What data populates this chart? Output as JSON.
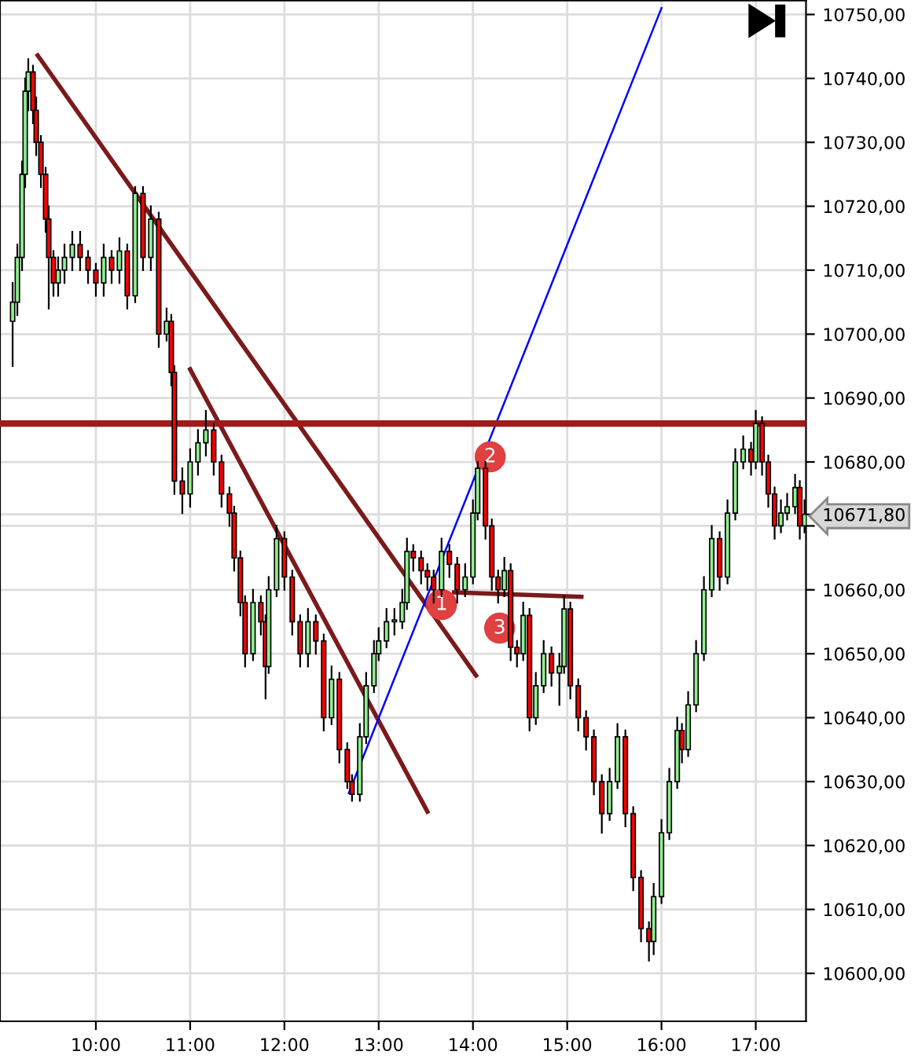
{
  "chart_data": {
    "type": "candlestick",
    "x": [
      9.117,
      9.167,
      9.217,
      9.25,
      9.283,
      9.333,
      9.367,
      9.417,
      9.467,
      9.5,
      9.55,
      9.6,
      9.667,
      9.75,
      9.833,
      9.917,
      10.0,
      10.083,
      10.167,
      10.25,
      10.333,
      10.417,
      10.5,
      10.583,
      10.667,
      10.75,
      10.8,
      10.833,
      10.917,
      11.0,
      11.083,
      11.167,
      11.25,
      11.333,
      11.417,
      11.467,
      11.533,
      11.583,
      11.667,
      11.75,
      11.8,
      11.833,
      11.917,
      12.0,
      12.083,
      12.167,
      12.25,
      12.333,
      12.417,
      12.5,
      12.583,
      12.667,
      12.717,
      12.8,
      12.867,
      12.95,
      13.0,
      13.083,
      13.167,
      13.25,
      13.3,
      13.367,
      13.45,
      13.517,
      13.583,
      13.667,
      13.75,
      13.833,
      13.917,
      14.0,
      14.05,
      14.133,
      14.2,
      14.267,
      14.333,
      14.4,
      14.467,
      14.533,
      14.6,
      14.667,
      14.75,
      14.833,
      14.917,
      14.967,
      15.033,
      15.117,
      15.2,
      15.283,
      15.367,
      15.45,
      15.533,
      15.617,
      15.7,
      15.783,
      15.867,
      15.917,
      16.0,
      16.083,
      16.167,
      16.217,
      16.283,
      16.367,
      16.45,
      16.533,
      16.617,
      16.7,
      16.783,
      16.867,
      16.95,
      17.0,
      17.067,
      17.133,
      17.2,
      17.267,
      17.333,
      17.417,
      17.467,
      17.517
    ],
    "ohlc": [
      [
        10702,
        10708,
        10695,
        10705
      ],
      [
        10705,
        10714,
        10703,
        10712
      ],
      [
        10712,
        10727,
        10710,
        10725
      ],
      [
        10725,
        10740,
        10723,
        10738
      ],
      [
        10738,
        10743,
        10735,
        10741
      ],
      [
        10741,
        10742,
        10733,
        10735
      ],
      [
        10735,
        10737,
        10728,
        10730
      ],
      [
        10730,
        10731,
        10723,
        10725
      ],
      [
        10725,
        10726,
        10716,
        10718
      ],
      [
        10718,
        10720,
        10704,
        10712
      ],
      [
        10712,
        10713,
        10706,
        10708
      ],
      [
        10708,
        10712,
        10706,
        10710
      ],
      [
        10710,
        10714,
        10708,
        10712
      ],
      [
        10712,
        10716,
        10710,
        10714
      ],
      [
        10714,
        10716,
        10710,
        10712
      ],
      [
        10712,
        10713,
        10708,
        10710
      ],
      [
        10710,
        10711,
        10706,
        10708
      ],
      [
        10708,
        10714,
        10706,
        10712
      ],
      [
        10712,
        10713,
        10708,
        10710
      ],
      [
        10710,
        10715,
        10708,
        10713
      ],
      [
        10713,
        10714,
        10704,
        10706
      ],
      [
        10706,
        10723,
        10705,
        10722
      ],
      [
        10722,
        10723,
        10710,
        10712
      ],
      [
        10712,
        10720,
        10710,
        10718
      ],
      [
        10718,
        10719,
        10698,
        10700
      ],
      [
        10700,
        10704,
        10699,
        10702
      ],
      [
        10702,
        10703,
        10692,
        10694
      ],
      [
        10694,
        10695,
        10675,
        10677
      ],
      [
        10677,
        10679,
        10672,
        10675
      ],
      [
        10675,
        10682,
        10673,
        10680
      ],
      [
        10680,
        10685,
        10678,
        10683
      ],
      [
        10683,
        10688,
        10681,
        10685
      ],
      [
        10685,
        10686,
        10678,
        10680
      ],
      [
        10680,
        10681,
        10673,
        10675
      ],
      [
        10675,
        10676,
        10670,
        10672
      ],
      [
        10672,
        10673,
        10663,
        10665
      ],
      [
        10665,
        10666,
        10656,
        10658
      ],
      [
        10658,
        10659,
        10648,
        10650
      ],
      [
        10650,
        10660,
        10649,
        10658
      ],
      [
        10658,
        10659,
        10653,
        10655
      ],
      [
        10655,
        10656,
        10643,
        10648
      ],
      [
        10648,
        10662,
        10647,
        10660
      ],
      [
        10660,
        10670,
        10659,
        10668
      ],
      [
        10668,
        10669,
        10660,
        10662
      ],
      [
        10662,
        10663,
        10653,
        10655
      ],
      [
        10655,
        10656,
        10648,
        10650
      ],
      [
        10650,
        10657,
        10648,
        10655
      ],
      [
        10655,
        10656,
        10650,
        10652
      ],
      [
        10652,
        10653,
        10638,
        10640
      ],
      [
        10640,
        10648,
        10639,
        10646
      ],
      [
        10646,
        10647,
        10633,
        10635
      ],
      [
        10635,
        10636,
        10629,
        10630
      ],
      [
        10630,
        10631,
        10627,
        10628
      ],
      [
        10628,
        10639,
        10627,
        10637
      ],
      [
        10637,
        10647,
        10636,
        10645
      ],
      [
        10645,
        10652,
        10644,
        10650
      ],
      [
        10650,
        10654,
        10649,
        10652
      ],
      [
        10652,
        10657,
        10651,
        10655
      ],
      [
        10655,
        10657,
        10653,
        10655
      ],
      [
        10655,
        10660,
        10654,
        10658
      ],
      [
        10658,
        10668,
        10657,
        10666
      ],
      [
        10666,
        10667,
        10663,
        10665
      ],
      [
        10665,
        10666,
        10661,
        10663
      ],
      [
        10663,
        10664,
        10660,
        10662
      ],
      [
        10662,
        10663,
        10658,
        10660
      ],
      [
        10660,
        10668,
        10659,
        10666
      ],
      [
        10666,
        10667,
        10662,
        10664
      ],
      [
        10664,
        10665,
        10658,
        10660
      ],
      [
        10660,
        10664,
        10659,
        10662
      ],
      [
        10662,
        10674,
        10661,
        10672
      ],
      [
        10672,
        10680,
        10671,
        10679
      ],
      [
        10679,
        10680,
        10668,
        10670
      ],
      [
        10670,
        10671,
        10660,
        10662
      ],
      [
        10662,
        10663,
        10658,
        10660
      ],
      [
        10660,
        10665,
        10659,
        10663
      ],
      [
        10663,
        10664,
        10649,
        10651
      ],
      [
        10651,
        10652,
        10648,
        10650
      ],
      [
        10650,
        10658,
        10649,
        10656
      ],
      [
        10656,
        10657,
        10638,
        10640
      ],
      [
        10640,
        10647,
        10639,
        10645
      ],
      [
        10645,
        10652,
        10644,
        10650
      ],
      [
        10650,
        10651,
        10645,
        10647
      ],
      [
        10647,
        10650,
        10642,
        10648
      ],
      [
        10648,
        10659,
        10647,
        10657
      ],
      [
        10657,
        10658,
        10643,
        10645
      ],
      [
        10645,
        10646,
        10638,
        10640
      ],
      [
        10640,
        10641,
        10635,
        10637
      ],
      [
        10637,
        10638,
        10628,
        10630
      ],
      [
        10630,
        10631,
        10622,
        10625
      ],
      [
        10625,
        10632,
        10624,
        10630
      ],
      [
        10630,
        10639,
        10629,
        10637
      ],
      [
        10637,
        10638,
        10623,
        10625
      ],
      [
        10625,
        10626,
        10613,
        10615
      ],
      [
        10615,
        10616,
        10605,
        10607
      ],
      [
        10607,
        10608,
        10602,
        10605
      ],
      [
        10605,
        10614,
        10603,
        10612
      ],
      [
        10612,
        10624,
        10611,
        10622
      ],
      [
        10622,
        10632,
        10621,
        10630
      ],
      [
        10630,
        10640,
        10629,
        10638
      ],
      [
        10638,
        10639,
        10633,
        10635
      ],
      [
        10635,
        10644,
        10634,
        10642
      ],
      [
        10642,
        10652,
        10641,
        10650
      ],
      [
        10650,
        10662,
        10649,
        10660
      ],
      [
        10660,
        10670,
        10659,
        10668
      ],
      [
        10668,
        10669,
        10660,
        10662
      ],
      [
        10662,
        10674,
        10661,
        10672
      ],
      [
        10672,
        10682,
        10671,
        10680
      ],
      [
        10680,
        10684,
        10679,
        10682
      ],
      [
        10682,
        10683,
        10678,
        10680
      ],
      [
        10680,
        10688,
        10679,
        10686
      ],
      [
        10686,
        10687,
        10678,
        10680
      ],
      [
        10680,
        10681,
        10673,
        10675
      ],
      [
        10675,
        10676,
        10668,
        10670
      ],
      [
        10670,
        10674,
        10669,
        10672
      ],
      [
        10672,
        10675,
        10671,
        10673
      ],
      [
        10673,
        10678,
        10672,
        10676
      ],
      [
        10676,
        10677,
        10668,
        10670
      ],
      [
        10670,
        10674,
        10669,
        10671.8
      ]
    ],
    "series": [
      {
        "type": "line",
        "color": "#7b1a1a",
        "x": [
          9.383,
          14.033
        ],
        "values": [
          10743.6,
          10646.6
        ]
      },
      {
        "type": "line",
        "color": "#7b1a1a",
        "x": [
          11.0,
          13.517
        ],
        "values": [
          10694.5,
          10625.3
        ]
      },
      {
        "type": "line",
        "color": "#0000ff",
        "x": [
          12.683,
          16.0
        ],
        "values": [
          10628.2,
          10751.0
        ]
      },
      {
        "type": "line",
        "color": "#7b1a1a",
        "x": [
          13.8,
          15.15
        ],
        "values": [
          10659.6,
          10658.9
        ]
      }
    ],
    "ref_lines": [
      {
        "axis": "y",
        "value": 10686,
        "color": "#a31a1a"
      }
    ],
    "annotations": [
      {
        "text": "1",
        "x": 13.667,
        "y": 10657.7
      },
      {
        "text": "2",
        "x": 14.183,
        "y": 10680.8
      },
      {
        "text": "3",
        "x": 14.283,
        "y": 10654.0
      }
    ],
    "xlim": [
      8.983,
      17.533
    ],
    "ylim": [
      10592.5,
      10752.2
    ],
    "xticks": [
      {
        "value": 10,
        "label": "10:00"
      },
      {
        "value": 11,
        "label": "11:00"
      },
      {
        "value": 12,
        "label": "12:00"
      },
      {
        "value": 13,
        "label": "13:00"
      },
      {
        "value": 14,
        "label": "14:00"
      },
      {
        "value": 15,
        "label": "15:00"
      },
      {
        "value": 16,
        "label": "16:00"
      },
      {
        "value": 17,
        "label": "17:00"
      }
    ],
    "yticks": [
      {
        "value": 10600,
        "label": "10600,00"
      },
      {
        "value": 10610,
        "label": "10610,00"
      },
      {
        "value": 10620,
        "label": "10620,00"
      },
      {
        "value": 10630,
        "label": "10630,00"
      },
      {
        "value": 10640,
        "label": "10640,00"
      },
      {
        "value": 10650,
        "label": "10650,00"
      },
      {
        "value": 10660,
        "label": "10660,00"
      },
      {
        "value": 10670,
        "label": null
      },
      {
        "value": 10671.8,
        "label": "10671,80"
      },
      {
        "value": 10680,
        "label": "10680,00"
      },
      {
        "value": 10690,
        "label": "10690,00"
      },
      {
        "value": 10700,
        "label": "10700,00"
      },
      {
        "value": 10710,
        "label": "10710,00"
      },
      {
        "value": 10720,
        "label": "10720,00"
      },
      {
        "value": 10730,
        "label": "10730,00"
      },
      {
        "value": 10740,
        "label": "10740,00"
      },
      {
        "value": 10750,
        "label": "10750,00"
      }
    ],
    "grid": true
  }
}
